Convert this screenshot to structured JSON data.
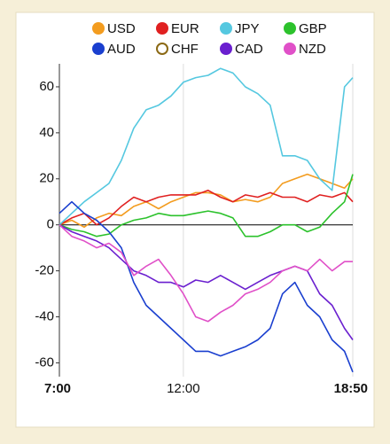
{
  "chart_data": {
    "type": "line",
    "x": [
      7,
      7.5,
      8,
      8.5,
      9,
      9.5,
      10,
      10.5,
      11,
      11.5,
      12,
      12.5,
      13,
      13.5,
      14,
      14.5,
      15,
      15.5,
      16,
      16.5,
      17,
      17.5,
      18,
      18.5,
      18.8333
    ],
    "xlim": [
      7,
      18.8333
    ],
    "xticks": [
      {
        "value": 7,
        "label": "7:00"
      },
      {
        "value": 12,
        "label": "12:00"
      },
      {
        "value": 18.8333,
        "label": "18:50"
      }
    ],
    "ylim": [
      -66,
      70
    ],
    "yticks": [
      -60,
      -40,
      -20,
      0,
      20,
      40,
      60
    ],
    "zero_line": true,
    "series": [
      {
        "name": "USD",
        "color": "#f39c1f",
        "values": [
          0,
          2,
          -1,
          3,
          5,
          4,
          8,
          10,
          7,
          10,
          12,
          14,
          14,
          13,
          10,
          11,
          10,
          12,
          18,
          20,
          22,
          20,
          18,
          16,
          20
        ]
      },
      {
        "name": "EUR",
        "color": "#e02020",
        "values": [
          0,
          3,
          5,
          0,
          3,
          8,
          12,
          10,
          12,
          13,
          13,
          13,
          15,
          12,
          10,
          13,
          12,
          14,
          12,
          12,
          10,
          13,
          12,
          14,
          10
        ]
      },
      {
        "name": "JPY",
        "color": "#55c8e0",
        "values": [
          0,
          5,
          10,
          14,
          18,
          28,
          42,
          50,
          52,
          56,
          62,
          64,
          65,
          68,
          66,
          60,
          57,
          52,
          30,
          30,
          28,
          20,
          15,
          60,
          64
        ]
      },
      {
        "name": "GBP",
        "color": "#2cc22c",
        "values": [
          0,
          -2,
          -3,
          -5,
          -4,
          0,
          2,
          3,
          5,
          4,
          4,
          5,
          6,
          5,
          3,
          -5,
          -5,
          -3,
          0,
          0,
          -3,
          -1,
          5,
          10,
          22
        ]
      },
      {
        "name": "AUD",
        "color": "#1a3fcf",
        "values": [
          5,
          10,
          5,
          2,
          -3,
          -10,
          -25,
          -35,
          -40,
          -45,
          -50,
          -55,
          -55,
          -57,
          -55,
          -53,
          -50,
          -45,
          -30,
          -25,
          -35,
          -40,
          -50,
          -55,
          -64
        ]
      },
      {
        "name": "CHF",
        "color": "#8b6914",
        "hollow": true,
        "values": [
          null,
          null,
          null,
          null,
          null,
          null,
          null,
          null,
          null,
          null,
          null,
          null,
          null,
          null,
          null,
          null,
          null,
          null,
          null,
          null,
          null,
          null,
          null,
          null,
          null
        ]
      },
      {
        "name": "CAD",
        "color": "#6a1fcf",
        "values": [
          0,
          -3,
          -5,
          -7,
          -10,
          -15,
          -20,
          -22,
          -25,
          -25,
          -27,
          -24,
          -25,
          -22,
          -25,
          -28,
          -25,
          -22,
          -20,
          -18,
          -20,
          -30,
          -35,
          -45,
          -50
        ]
      },
      {
        "name": "NZD",
        "color": "#e050c8",
        "values": [
          0,
          -5,
          -7,
          -10,
          -8,
          -12,
          -22,
          -18,
          -15,
          -22,
          -30,
          -40,
          -42,
          -38,
          -35,
          -30,
          -28,
          -25,
          -20,
          -18,
          -20,
          -15,
          -20,
          -16,
          -16
        ]
      }
    ]
  }
}
